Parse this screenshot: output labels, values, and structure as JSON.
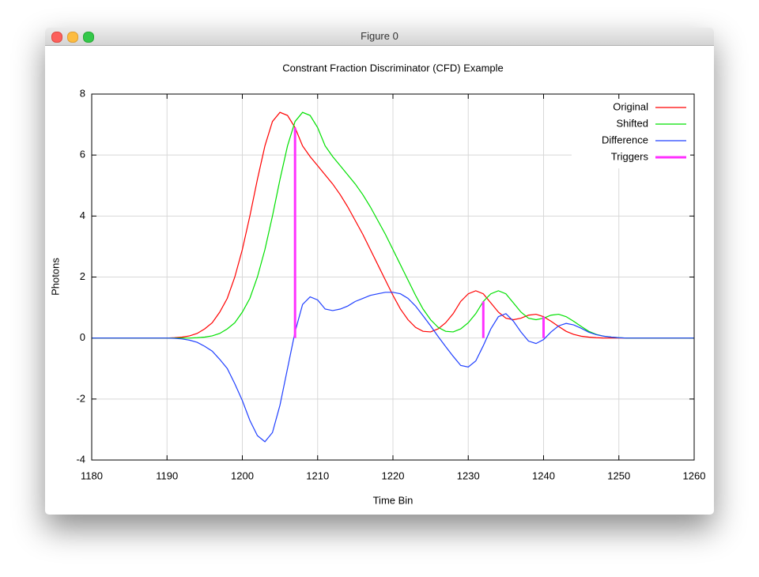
{
  "window_title": "Figure 0",
  "chart_data": {
    "type": "line",
    "title": "Constrant Fraction Discriminator (CFD) Example",
    "x_label": "Time Bin",
    "y_label": "Photons",
    "xlim": [
      1180,
      1260
    ],
    "xticks": [
      1180,
      1190,
      1200,
      1210,
      1220,
      1230,
      1240,
      1250,
      1260
    ],
    "ylim": [
      -4,
      8
    ],
    "yticks": [
      -4,
      -2,
      0,
      2,
      4,
      6,
      8
    ],
    "grid": true,
    "legend": "top right",
    "x": [
      1180,
      1181,
      1182,
      1183,
      1184,
      1185,
      1186,
      1187,
      1188,
      1189,
      1190,
      1191,
      1192,
      1193,
      1194,
      1195,
      1196,
      1197,
      1198,
      1199,
      1200,
      1201,
      1202,
      1203,
      1204,
      1205,
      1206,
      1207,
      1208,
      1209,
      1210,
      1211,
      1212,
      1213,
      1214,
      1215,
      1216,
      1217,
      1218,
      1219,
      1220,
      1221,
      1222,
      1223,
      1224,
      1225,
      1226,
      1227,
      1228,
      1229,
      1230,
      1231,
      1232,
      1233,
      1234,
      1235,
      1236,
      1237,
      1238,
      1239,
      1240,
      1241,
      1242,
      1243,
      1244,
      1245,
      1246,
      1247,
      1248,
      1249,
      1250,
      1251,
      1252,
      1253,
      1254,
      1255,
      1256,
      1257,
      1258,
      1259,
      1260
    ],
    "series": [
      {
        "name": "Original",
        "color": "#ff0000",
        "values": [
          0,
          0,
          0,
          0,
          0,
          0,
          0,
          0,
          0,
          0,
          0,
          0.01,
          0.03,
          0.07,
          0.15,
          0.3,
          0.5,
          0.85,
          1.3,
          2.0,
          2.9,
          4.0,
          5.2,
          6.3,
          7.1,
          7.4,
          7.3,
          6.9,
          6.3,
          5.95,
          5.65,
          5.35,
          5.05,
          4.7,
          4.3,
          3.85,
          3.4,
          2.9,
          2.4,
          1.9,
          1.4,
          0.95,
          0.6,
          0.35,
          0.22,
          0.2,
          0.3,
          0.5,
          0.8,
          1.2,
          1.45,
          1.55,
          1.45,
          1.15,
          0.85,
          0.65,
          0.6,
          0.65,
          0.75,
          0.78,
          0.7,
          0.55,
          0.38,
          0.22,
          0.12,
          0.06,
          0.03,
          0.01,
          0,
          0,
          0,
          0,
          0,
          0,
          0,
          0,
          0,
          0,
          0,
          0,
          0
        ]
      },
      {
        "name": "Shifted",
        "color": "#00e000",
        "values": [
          0,
          0,
          0,
          0,
          0,
          0,
          0,
          0,
          0,
          0,
          0,
          0,
          0,
          0,
          0.01,
          0.03,
          0.07,
          0.15,
          0.3,
          0.5,
          0.85,
          1.3,
          2.0,
          2.9,
          4.0,
          5.2,
          6.3,
          7.1,
          7.4,
          7.3,
          6.9,
          6.3,
          5.95,
          5.65,
          5.35,
          5.05,
          4.7,
          4.3,
          3.85,
          3.4,
          2.9,
          2.4,
          1.9,
          1.4,
          0.95,
          0.6,
          0.35,
          0.22,
          0.2,
          0.3,
          0.5,
          0.8,
          1.2,
          1.45,
          1.55,
          1.45,
          1.15,
          0.85,
          0.65,
          0.6,
          0.65,
          0.75,
          0.78,
          0.7,
          0.55,
          0.38,
          0.22,
          0.12,
          0.06,
          0.03,
          0.01,
          0,
          0,
          0,
          0,
          0,
          0,
          0,
          0,
          0,
          0
        ]
      },
      {
        "name": "Difference",
        "color": "#2040ff",
        "values": [
          0,
          0,
          0,
          0,
          0,
          0,
          0,
          0,
          0,
          0,
          0,
          -0.01,
          -0.03,
          -0.07,
          -0.14,
          -0.27,
          -0.43,
          -0.7,
          -1.0,
          -1.5,
          -2.05,
          -2.7,
          -3.2,
          -3.4,
          -3.1,
          -2.2,
          -1.0,
          0.2,
          1.1,
          1.35,
          1.25,
          0.95,
          0.9,
          0.95,
          1.05,
          1.2,
          1.3,
          1.4,
          1.45,
          1.5,
          1.5,
          1.45,
          1.3,
          1.05,
          0.73,
          0.4,
          0.05,
          -0.28,
          -0.6,
          -0.9,
          -0.95,
          -0.75,
          -0.25,
          0.3,
          0.7,
          0.8,
          0.55,
          0.2,
          -0.1,
          -0.18,
          -0.05,
          0.2,
          0.4,
          0.48,
          0.43,
          0.32,
          0.19,
          0.11,
          0.06,
          0.03,
          0.01,
          0,
          0,
          0,
          0,
          0,
          0,
          0,
          0,
          0,
          0
        ]
      },
      {
        "name": "Triggers",
        "color": "#ff30ff",
        "style": "impulses",
        "x": [
          1207,
          1232,
          1240
        ],
        "values": [
          6.9,
          1.2,
          0.7
        ]
      }
    ]
  }
}
